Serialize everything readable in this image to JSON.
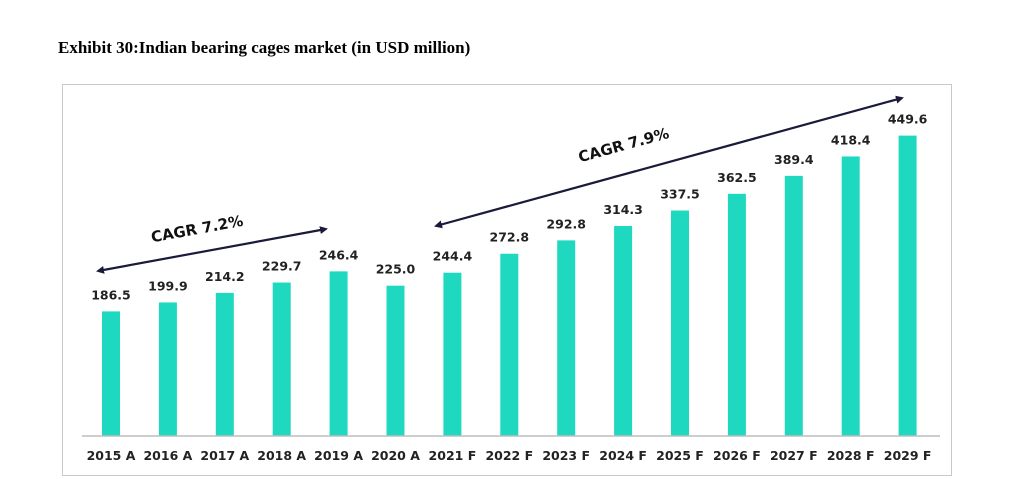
{
  "header": {
    "title": "Exhibit 30:Indian bearing cages market (in USD million)"
  },
  "colors": {
    "bar": "#1ED8C0",
    "text": "#222222",
    "arrow": "#1a1a3a",
    "axis": "#bdbdbd"
  },
  "chart_data": {
    "type": "bar",
    "title": "Exhibit 30:Indian bearing cages market (in USD million)",
    "xlabel": "",
    "ylabel": "USD million",
    "ylim": [
      0,
      470
    ],
    "grid": false,
    "categories": [
      "2015 A",
      "2016 A",
      "2017 A",
      "2018 A",
      "2019 A",
      "2020 A",
      "2021 F",
      "2022 F",
      "2023 F",
      "2024 F",
      "2025 F",
      "2026 F",
      "2027 F",
      "2028 F",
      "2029 F"
    ],
    "values": [
      186.5,
      199.9,
      214.2,
      229.7,
      246.4,
      225.0,
      244.4,
      272.8,
      292.8,
      314.3,
      337.5,
      362.5,
      389.4,
      418.4,
      449.6
    ],
    "value_labels": [
      "186.5",
      "199.9",
      "214.2",
      "229.7",
      "246.4",
      "225.0",
      "244.4",
      "272.8",
      "292.8",
      "314.3",
      "337.5",
      "362.5",
      "389.4",
      "418.4",
      "449.6"
    ],
    "annotations": [
      {
        "text": "CAGR 7.2%",
        "from_category": "2015 A",
        "to_category": "2019 A"
      },
      {
        "text": "CAGR 7.9%",
        "from_category": "2021 F",
        "to_category": "2029 F"
      }
    ]
  }
}
